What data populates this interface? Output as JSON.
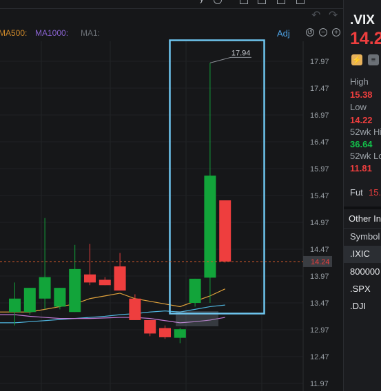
{
  "top": {
    "menu_fragment": "y"
  },
  "indicators": {
    "ma500": "MA500:",
    "ma1000": "MA1000:",
    "ma1": "MA1:",
    "adj": "Adj",
    "colors": {
      "ma500": "#d08a2a",
      "ma1000": "#8a63d2",
      "ma1": "#6b7076"
    }
  },
  "price_axis": {
    "labels": [
      "17.97",
      "17.47",
      "16.97",
      "16.47",
      "15.97",
      "15.47",
      "14.97",
      "14.47",
      "13.97",
      "13.47",
      "12.97",
      "12.47",
      "11.97"
    ],
    "current_price": "14.24"
  },
  "annotation": {
    "high_marker": "17.94"
  },
  "chart_data": {
    "type": "candlestick",
    "series": [
      {
        "candles": [
          {
            "open": 13.3,
            "close": 13.55,
            "high": 13.85,
            "low": 13.05
          },
          {
            "open": 13.3,
            "close": 13.75,
            "high": 13.75,
            "low": 13.25
          },
          {
            "open": 13.55,
            "close": 13.95,
            "high": 15.05,
            "low": 13.35
          },
          {
            "open": 13.4,
            "close": 13.75,
            "high": 13.75,
            "low": 13.35
          },
          {
            "open": 13.3,
            "close": 14.1,
            "high": 14.55,
            "low": 13.3
          },
          {
            "open": 14.0,
            "close": 13.85,
            "high": 14.57,
            "low": 13.8
          },
          {
            "open": 13.9,
            "close": 13.8,
            "high": 13.95,
            "low": 13.8
          },
          {
            "open": 14.15,
            "close": 13.7,
            "high": 14.4,
            "low": 13.7
          },
          {
            "open": 13.55,
            "close": 13.15,
            "high": 13.63,
            "low": 13.15
          },
          {
            "open": 13.15,
            "close": 12.9,
            "high": 13.15,
            "low": 12.85
          },
          {
            "open": 13.0,
            "close": 12.83,
            "high": 13.05,
            "low": 12.8
          },
          {
            "open": 12.82,
            "close": 12.98,
            "high": 13.0,
            "low": 12.72
          },
          {
            "open": 13.47,
            "close": 13.92,
            "high": 13.92,
            "low": 13.4
          },
          {
            "open": 13.94,
            "close": 15.84,
            "high": 17.94,
            "low": 13.47
          },
          {
            "open": 15.38,
            "close": 14.24,
            "high": 15.38,
            "low": 14.22
          }
        ]
      }
    ],
    "ma_orange": [
      13.3,
      13.3,
      13.35,
      13.4,
      13.45,
      13.55,
      13.6,
      13.65,
      13.55,
      13.5,
      13.45,
      13.4,
      13.5,
      13.6,
      13.73
    ],
    "ma_blue": [
      13.1,
      13.12,
      13.14,
      13.16,
      13.18,
      13.2,
      13.22,
      13.25,
      13.27,
      13.3,
      13.32,
      13.3,
      13.35,
      13.4,
      13.43
    ],
    "ma_pink": [
      13.25,
      13.22,
      13.2,
      13.18,
      13.18,
      13.18,
      13.19,
      13.2,
      13.2,
      13.18,
      13.14,
      13.1,
      13.12,
      13.15,
      13.2
    ],
    "ylim": [
      11.8,
      18.6
    ]
  },
  "ticker": {
    "symbol": ".VIX",
    "price": "14.2",
    "high_label": "High",
    "high_value": "15.38",
    "low_label": "Low",
    "low_value": "14.22",
    "wk52_high_label": "52wk Hi",
    "wk52_high_value": "36.64",
    "wk52_low_label": "52wk Lo",
    "wk52_low_value": "11.81",
    "fut_label": "Fut",
    "fut_value": "15."
  },
  "other_indices": {
    "header": "Other In",
    "column": "Symbol",
    "items": [
      ".IXIC",
      "800000",
      ".SPX",
      ".DJI"
    ]
  },
  "colors": {
    "up": "#12a43a",
    "down": "#ee3e3e",
    "accent": "#4ea3e6",
    "highlight_box": "#6ec6ef"
  }
}
